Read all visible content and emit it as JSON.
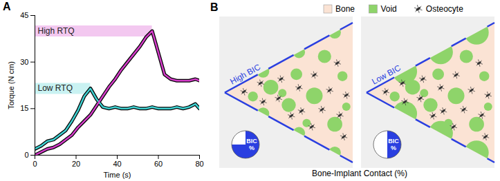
{
  "panel_letters": [
    "A",
    "B"
  ],
  "chart_data": {
    "type": "line",
    "x_label": "Time (s)",
    "y_label": "Torque (N cm)",
    "x": [
      0,
      3,
      6,
      9,
      12,
      15,
      18,
      21,
      24,
      27,
      30,
      33,
      36,
      39,
      42,
      45,
      48,
      51,
      54,
      57,
      60,
      63,
      66,
      69,
      72,
      75,
      78,
      80
    ],
    "series": [
      {
        "name": "Low RTQ",
        "color": "#3fd0d0",
        "values": [
          2,
          3,
          4.5,
          5,
          6.5,
          8,
          11,
          14.5,
          19,
          21.5,
          18,
          15.5,
          15,
          15.5,
          15,
          15,
          15.5,
          15,
          15,
          15.5,
          15,
          15,
          15,
          15.5,
          15,
          15.5,
          16.5,
          15
        ]
      },
      {
        "name": "High RTQ",
        "color": "#d33cc8",
        "values": [
          0,
          1,
          2,
          2.5,
          3.5,
          5,
          6.5,
          9,
          11,
          13,
          16,
          19,
          22,
          24.5,
          27.5,
          30,
          32.5,
          35,
          38,
          40,
          33,
          26,
          24.5,
          24,
          24,
          24,
          24.5,
          24
        ]
      }
    ],
    "xlim": [
      0,
      80
    ],
    "xticks": [
      0,
      20,
      40,
      60,
      80
    ],
    "ylim": [
      0,
      45
    ],
    "yticks": [
      0,
      15,
      30,
      45
    ],
    "grid": false
  },
  "diagram": {
    "legend": [
      {
        "label": "Bone",
        "color": "#fbe3d4"
      },
      {
        "label": "Void",
        "color": "#8ed46a"
      },
      {
        "label": "Osteocyte"
      }
    ],
    "panels": [
      {
        "title": "High BIC",
        "pie_label": "BIC %",
        "bic_percent": 75
      },
      {
        "title": "Low BIC",
        "pie_label": "BIC %",
        "bic_percent": 50
      }
    ],
    "caption": "Bone-Implant Contact (%)"
  }
}
